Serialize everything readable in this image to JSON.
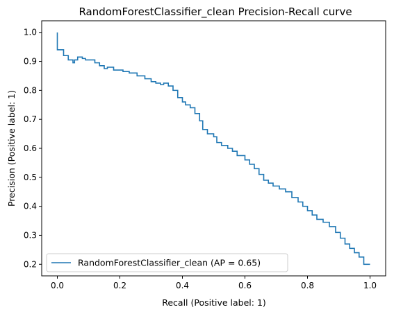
{
  "chart_data": {
    "type": "line",
    "title": "RandomForestClassifier_clean Precision-Recall curve",
    "xlabel": "Recall (Positive label: 1)",
    "ylabel": "Precision (Positive label: 1)",
    "xlim": [
      -0.05,
      1.05
    ],
    "ylim": [
      0.16,
      1.04
    ],
    "xticks": [
      0.0,
      0.2,
      0.4,
      0.6,
      0.8,
      1.0
    ],
    "xtick_labels": [
      "0.0",
      "0.2",
      "0.4",
      "0.6",
      "0.8",
      "1.0"
    ],
    "yticks": [
      0.2,
      0.3,
      0.4,
      0.5,
      0.6,
      0.7,
      0.8,
      0.9,
      1.0
    ],
    "ytick_labels": [
      "0.2",
      "0.3",
      "0.4",
      "0.5",
      "0.6",
      "0.7",
      "0.8",
      "0.9",
      "1.0"
    ],
    "grid": false,
    "legend_position": "lower-left",
    "line_color": "#1f77b4",
    "series": [
      {
        "name": "RandomForestClassifier_clean (AP = 0.65)",
        "step": true,
        "x": [
          0.0,
          0.02,
          0.02,
          0.035,
          0.05,
          0.055,
          0.065,
          0.08,
          0.09,
          0.1,
          0.12,
          0.135,
          0.15,
          0.16,
          0.18,
          0.195,
          0.21,
          0.22,
          0.23,
          0.24,
          0.255,
          0.28,
          0.3,
          0.315,
          0.33,
          0.34,
          0.355,
          0.37,
          0.385,
          0.4,
          0.41,
          0.425,
          0.44,
          0.455,
          0.465,
          0.48,
          0.5,
          0.51,
          0.525,
          0.545,
          0.56,
          0.575,
          0.6,
          0.615,
          0.63,
          0.645,
          0.66,
          0.675,
          0.69,
          0.71,
          0.73,
          0.75,
          0.77,
          0.785,
          0.8,
          0.815,
          0.83,
          0.85,
          0.87,
          0.89,
          0.905,
          0.92,
          0.935,
          0.95,
          0.965,
          0.98,
          1.0
        ],
        "y": [
          1.0,
          0.94,
          0.94,
          0.92,
          0.905,
          0.895,
          0.905,
          0.915,
          0.91,
          0.905,
          0.905,
          0.895,
          0.885,
          0.875,
          0.88,
          0.87,
          0.87,
          0.865,
          0.865,
          0.86,
          0.86,
          0.85,
          0.84,
          0.83,
          0.825,
          0.82,
          0.825,
          0.815,
          0.8,
          0.775,
          0.76,
          0.75,
          0.74,
          0.72,
          0.695,
          0.665,
          0.65,
          0.64,
          0.62,
          0.61,
          0.6,
          0.59,
          0.575,
          0.56,
          0.545,
          0.53,
          0.51,
          0.49,
          0.48,
          0.47,
          0.46,
          0.45,
          0.43,
          0.415,
          0.4,
          0.385,
          0.37,
          0.355,
          0.345,
          0.33,
          0.31,
          0.29,
          0.27,
          0.255,
          0.24,
          0.225,
          0.2
        ]
      }
    ]
  }
}
